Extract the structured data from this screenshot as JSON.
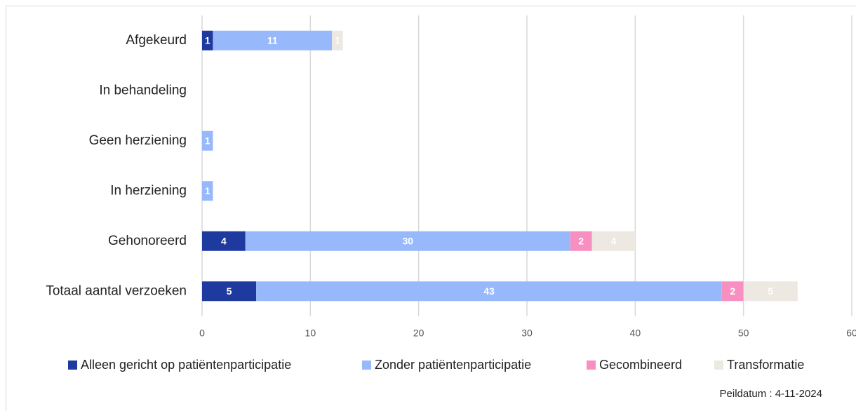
{
  "chart_data": {
    "type": "bar",
    "orientation": "horizontal",
    "stacked": true,
    "categories": [
      "Afgekeurd",
      "In behandeling",
      "Geen herziening",
      "In herziening",
      "Gehonoreerd",
      "Totaal aantal verzoeken"
    ],
    "series": [
      {
        "name": "Alleen gericht op patiëntenparticipatie",
        "color": "#1f3a9e",
        "values": [
          1,
          0,
          0,
          0,
          4,
          5
        ]
      },
      {
        "name": "Zonder patiëntenparticipatie",
        "color": "#97b9fb",
        "values": [
          11,
          0,
          1,
          1,
          30,
          43
        ]
      },
      {
        "name": "Gecombineerd",
        "color": "#f78fc1",
        "values": [
          0,
          0,
          0,
          0,
          2,
          2
        ]
      },
      {
        "name": "Transformatie",
        "color": "#ede8e1",
        "values": [
          1,
          0,
          0,
          0,
          4,
          5
        ]
      }
    ],
    "xlim": [
      0,
      60
    ],
    "xticks": [
      0,
      10,
      20,
      30,
      40,
      50,
      60
    ],
    "grid": true,
    "legend": "bottom",
    "footnote": "Peildatum : 4-11-2024"
  }
}
